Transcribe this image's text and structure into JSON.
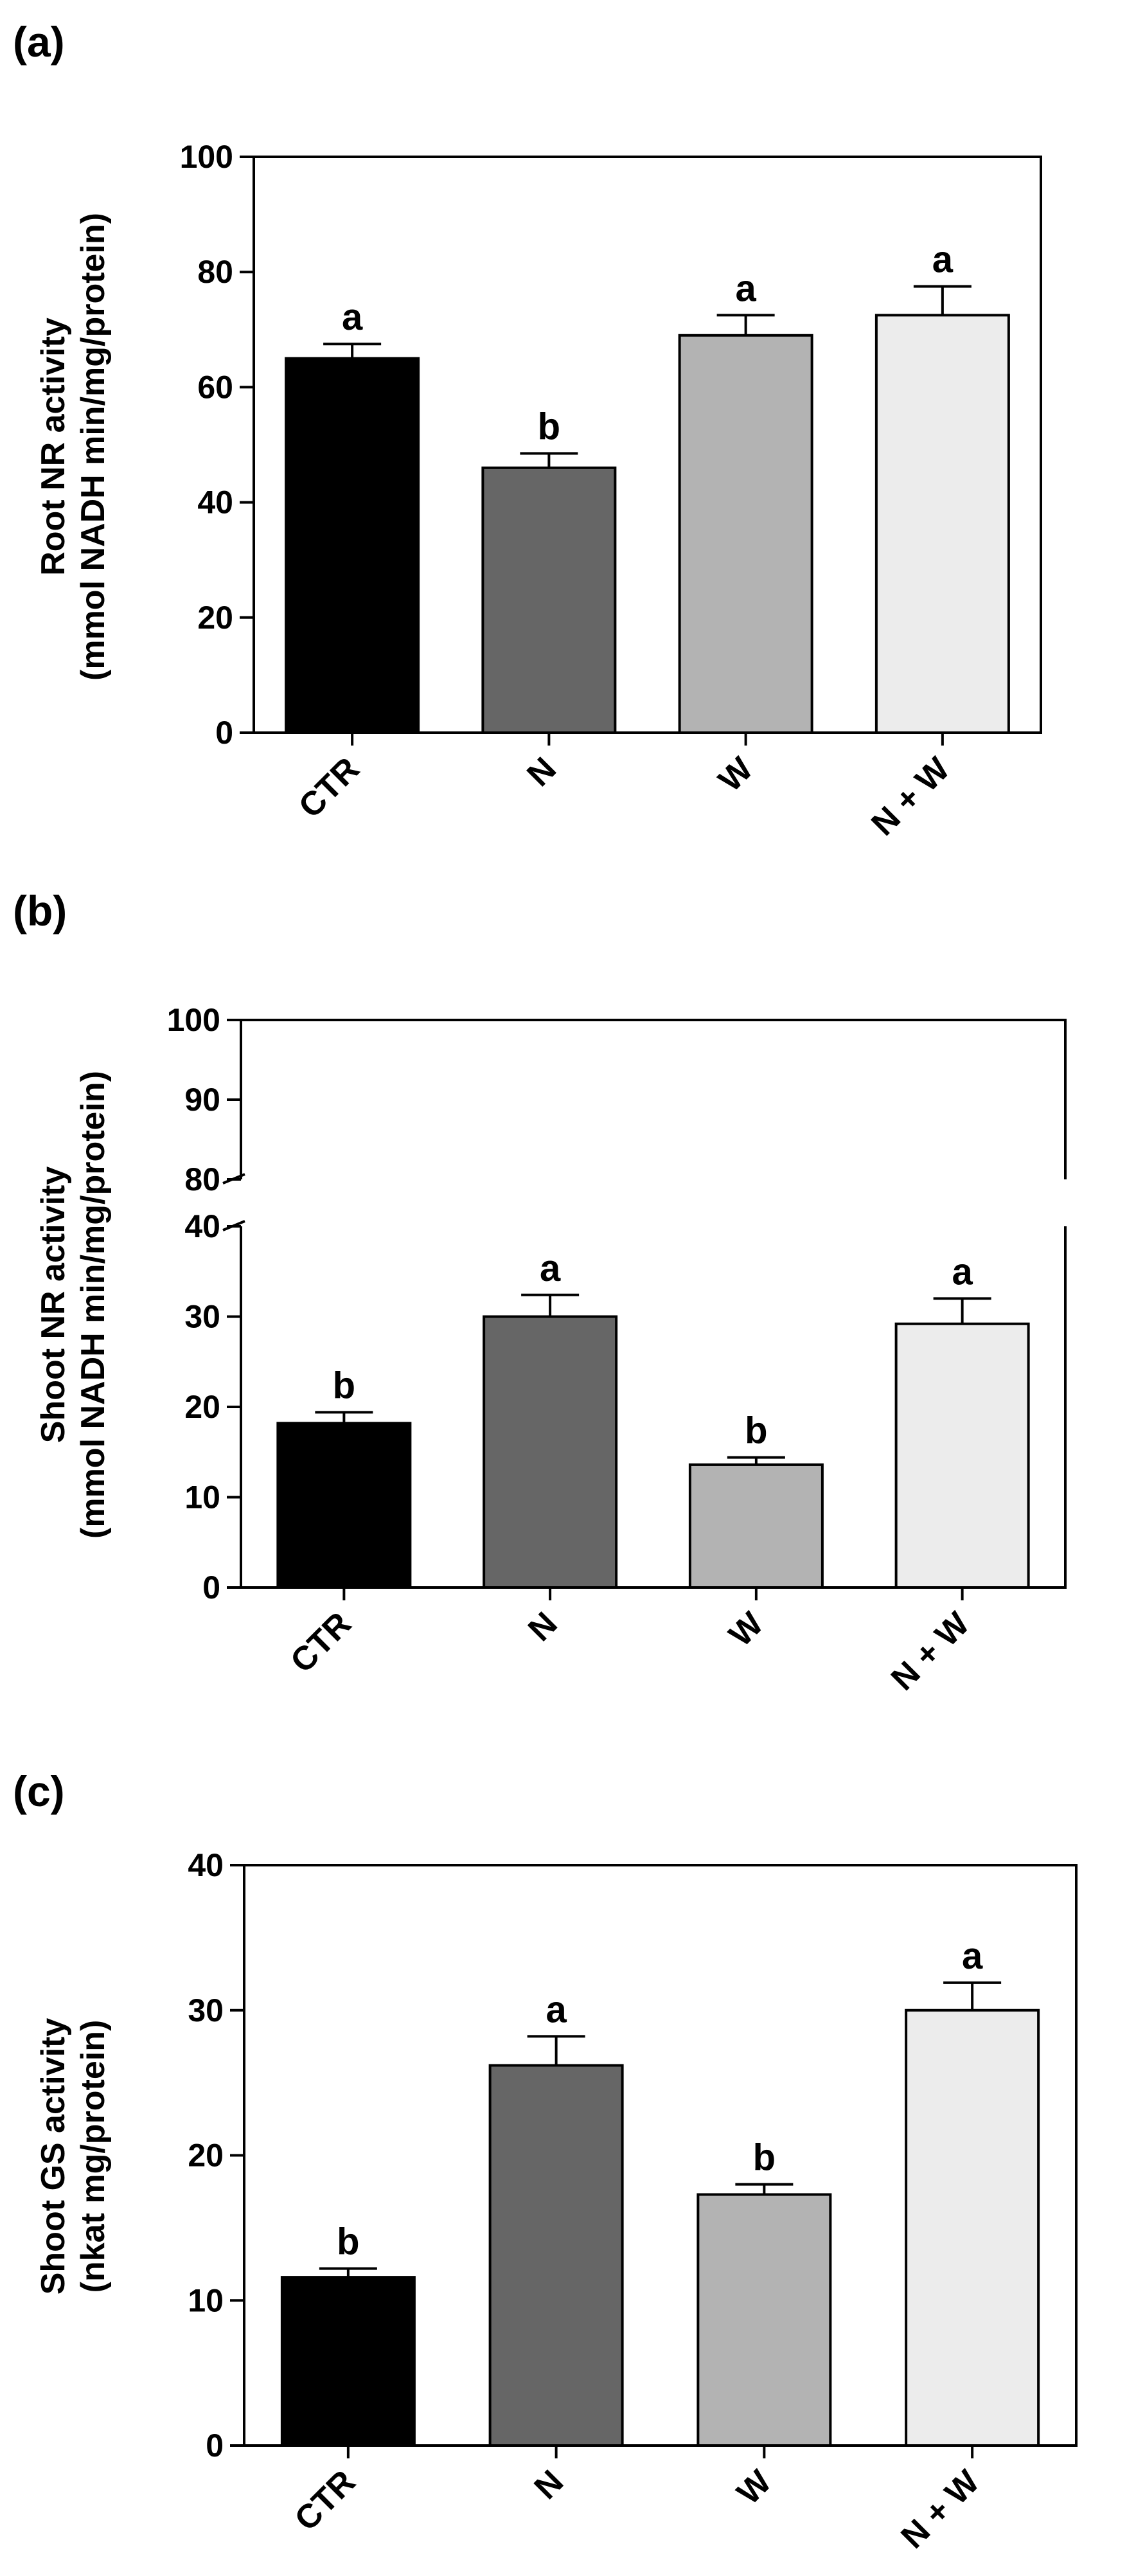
{
  "figure": {
    "panels": [
      {
        "letter": "(a)",
        "ylabel_lines": [
          "Root NR activity",
          "(mmol NADH min/mg/protein)"
        ]
      },
      {
        "letter": "(b)",
        "ylabel_lines": [
          "Shoot NR activity",
          "(mmol NADH min/mg/protein)"
        ]
      },
      {
        "letter": "(c)",
        "ylabel_lines": [
          "Shoot GS activity",
          "(nkat mg/protein)"
        ]
      }
    ]
  },
  "colors": {
    "CTR": "#000000",
    "N": "#666666",
    "W": "#b3b3b3",
    "N + W": "#ececec",
    "outline": "#000000"
  },
  "chart_data": [
    {
      "type": "bar",
      "title": "(a)",
      "categories": [
        "CTR",
        "N",
        "W",
        "N + W"
      ],
      "values": [
        65,
        46,
        69,
        72.5
      ],
      "errors": [
        2.5,
        2.5,
        3.5,
        5
      ],
      "significance": [
        "a",
        "b",
        "a",
        "a"
      ],
      "ylabel": "Root NR activity (mmol NADH min/mg/protein)",
      "xlabel": "",
      "ylim": [
        0,
        100
      ],
      "yticks": [
        "0",
        "20",
        "40",
        "60",
        "80",
        "100"
      ]
    },
    {
      "type": "bar",
      "title": "(b)",
      "categories": [
        "CTR",
        "N",
        "W",
        "N + W"
      ],
      "values": [
        18.2,
        30,
        13.6,
        29.2
      ],
      "errors": [
        1.2,
        2.4,
        0.8,
        2.8
      ],
      "significance": [
        "b",
        "a",
        "b",
        "a"
      ],
      "ylabel": "Shoot NR activity (mmol NADH min/mg/protein)",
      "xlabel": "",
      "ylim": [
        0,
        100
      ],
      "axis_break": [
        40,
        80
      ],
      "yticks": [
        "0",
        "10",
        "20",
        "30",
        "40",
        "80",
        "90",
        "100"
      ]
    },
    {
      "type": "bar",
      "title": "(c)",
      "categories": [
        "CTR",
        "N",
        "W",
        "N + W"
      ],
      "values": [
        11.6,
        26.2,
        17.3,
        30
      ],
      "errors": [
        0.6,
        2.0,
        0.7,
        1.9
      ],
      "significance": [
        "b",
        "a",
        "b",
        "a"
      ],
      "ylabel": "Shoot GS activity (nkat mg/protein)",
      "xlabel": "",
      "ylim": [
        0,
        40
      ],
      "yticks": [
        "0",
        "10",
        "20",
        "30",
        "40"
      ]
    }
  ]
}
